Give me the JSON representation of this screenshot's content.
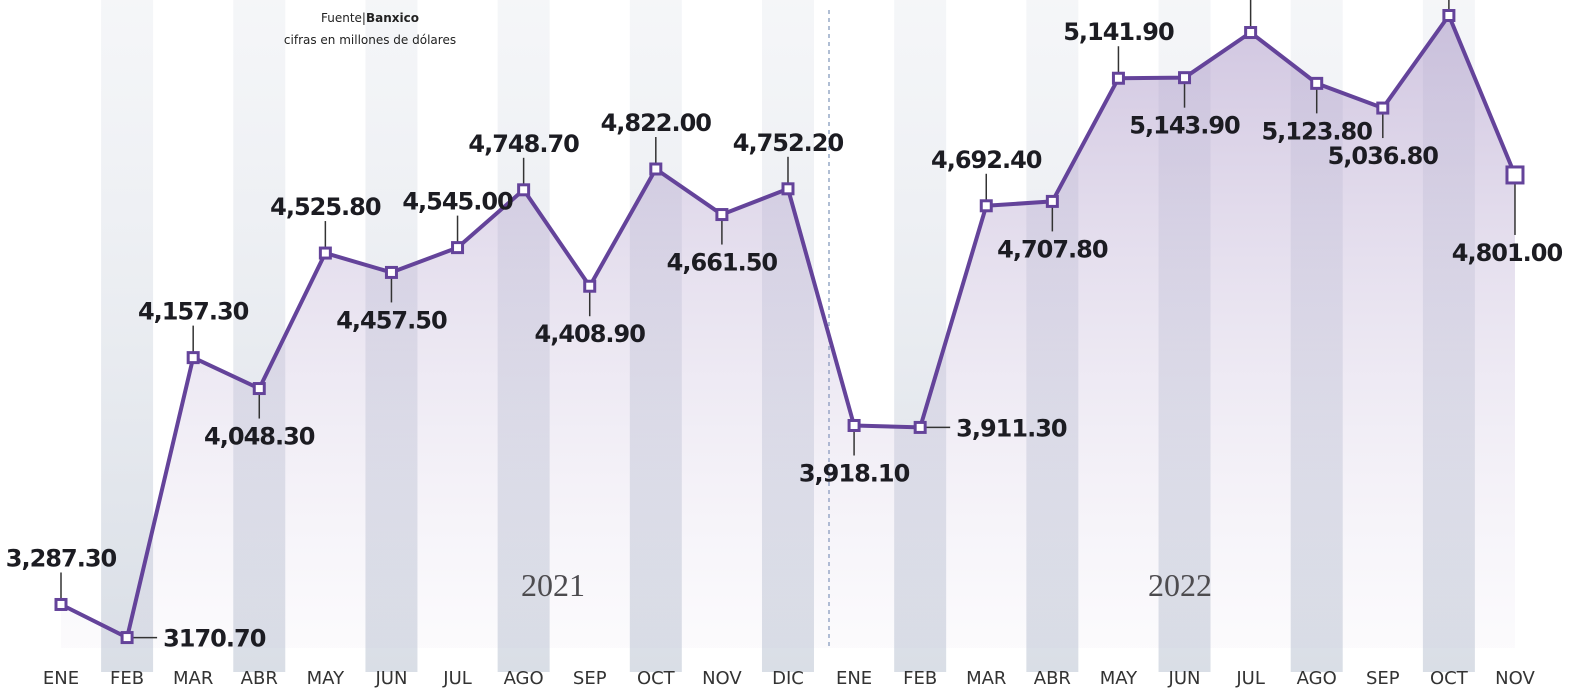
{
  "chart_data": {
    "type": "line",
    "source_prefix": "Fuente|",
    "source": "Banxico",
    "subtitle": "cifras en millones de dólares",
    "annotations": [
      "2021",
      "2022"
    ],
    "categories": [
      "ENE",
      "FEB",
      "MAR",
      "ABR",
      "MAY",
      "JUN",
      "JUL",
      "AGO",
      "SEP",
      "OCT",
      "NOV",
      "DIC",
      "ENE",
      "FEB",
      "MAR",
      "ABR",
      "MAY",
      "JUN",
      "JUL",
      "AGO",
      "SEP",
      "OCT",
      "NOV"
    ],
    "values": [
      3287.3,
      3170.7,
      4157.3,
      4048.3,
      4525.8,
      4457.5,
      4545.0,
      4748.7,
      4408.9,
      4822.0,
      4661.5,
      4752.2,
      3918.1,
      3911.3,
      4692.4,
      4707.8,
      5141.9,
      5143.9,
      5303,
      5123.8,
      5036.8,
      5363,
      4801.0
    ],
    "value_labels": [
      "3,287.30",
      "3170.70",
      "4,157.30",
      "4,048.30",
      "4,525.80",
      "4,457.50",
      "4,545.00",
      "4,748.70",
      "4,408.90",
      "4,822.00",
      "4,661.50",
      "4,752.20",
      "3,918.10",
      "3,911.30",
      "4,692.40",
      "4,707.80",
      "5,141.90",
      "5,143.90",
      null,
      "5,123.80",
      "5,036.80",
      null,
      "4,801.00"
    ],
    "color": "#64439a",
    "ylim": [
      3000,
      5400
    ]
  }
}
